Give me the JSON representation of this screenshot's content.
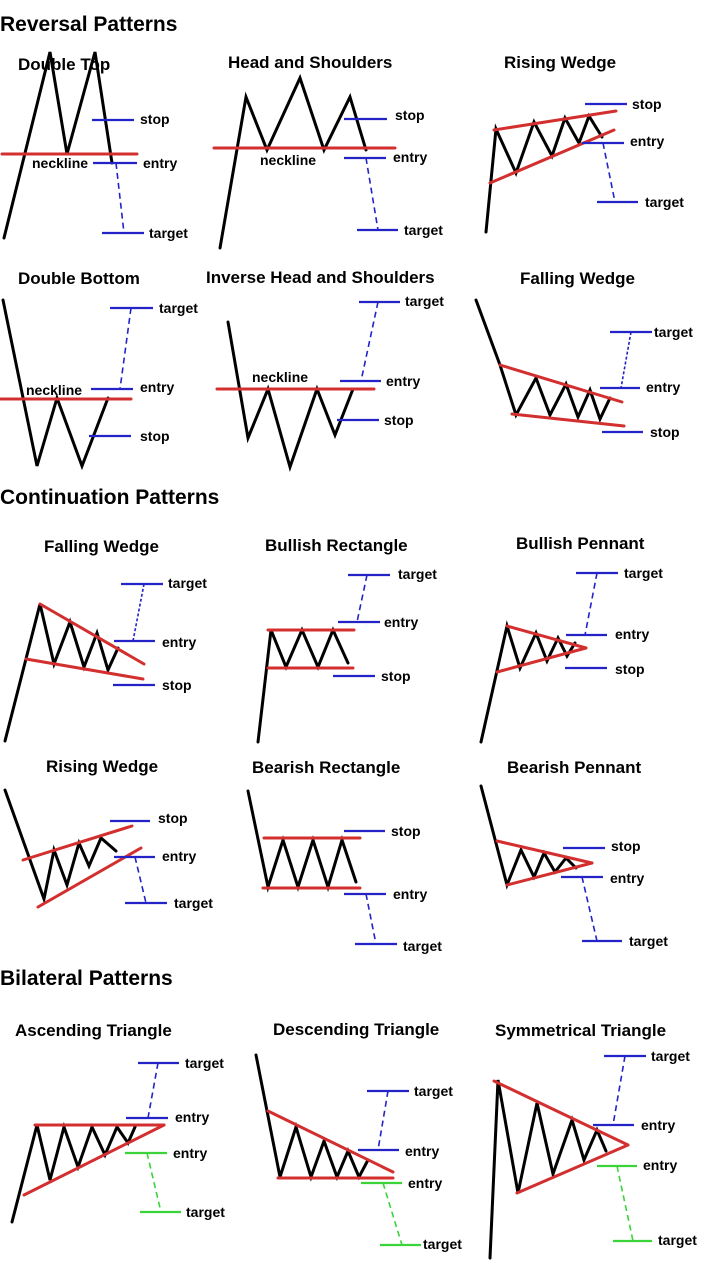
{
  "colors": {
    "price": "#000000",
    "trendline": "#d32f2f",
    "level_line": "#2323c8",
    "projection_bullish": "#2323c8",
    "projection_bearish_alt": "#3ad43a"
  },
  "sections": {
    "reversal": "Reversal Patterns",
    "continuation": "Continuation Patterns",
    "bilateral": "Bilateral Patterns"
  },
  "patterns": {
    "double_top": {
      "title": "Double Top",
      "neckline": "neckline",
      "stop": "stop",
      "entry": "entry",
      "target": "target"
    },
    "head_and_shoulders": {
      "title": "Head and Shoulders",
      "neckline": "neckline",
      "stop": "stop",
      "entry": "entry",
      "target": "target"
    },
    "rising_wedge_reversal": {
      "title": "Rising Wedge",
      "stop": "stop",
      "entry": "entry",
      "target": "target"
    },
    "double_bottom": {
      "title": "Double Bottom",
      "neckline": "neckline",
      "target": "target",
      "entry": "entry",
      "stop": "stop"
    },
    "inverse_head_and_shoulders": {
      "title": "Inverse Head and Shoulders",
      "neckline": "neckline",
      "target": "target",
      "entry": "entry",
      "stop": "stop"
    },
    "falling_wedge_reversal": {
      "title": "Falling Wedge",
      "target": "target",
      "entry": "entry",
      "stop": "stop"
    },
    "falling_wedge_continuation": {
      "title": "Falling Wedge",
      "target": "target",
      "entry": "entry",
      "stop": "stop"
    },
    "bullish_rectangle": {
      "title": "Bullish Rectangle",
      "target": "target",
      "entry": "entry",
      "stop": "stop"
    },
    "bullish_pennant": {
      "title": "Bullish Pennant",
      "target": "target",
      "entry": "entry",
      "stop": "stop"
    },
    "rising_wedge_continuation": {
      "title": "Rising Wedge",
      "stop": "stop",
      "entry": "entry",
      "target": "target"
    },
    "bearish_rectangle": {
      "title": "Bearish Rectangle",
      "stop": "stop",
      "entry": "entry",
      "target": "target"
    },
    "bearish_pennant": {
      "title": "Bearish Pennant",
      "stop": "stop",
      "entry": "entry",
      "target": "target"
    },
    "ascending_triangle": {
      "title": "Ascending Triangle",
      "target_up": "target",
      "entry_up": "entry",
      "entry_down": "entry",
      "target_down": "target"
    },
    "descending_triangle": {
      "title": "Descending Triangle",
      "target_up": "target",
      "entry_up": "entry",
      "entry_down": "entry",
      "target_down": "target"
    },
    "symmetrical_triangle": {
      "title": "Symmetrical Triangle",
      "target_up": "target",
      "entry_up": "entry",
      "entry_down": "entry",
      "target_down": "target"
    }
  }
}
